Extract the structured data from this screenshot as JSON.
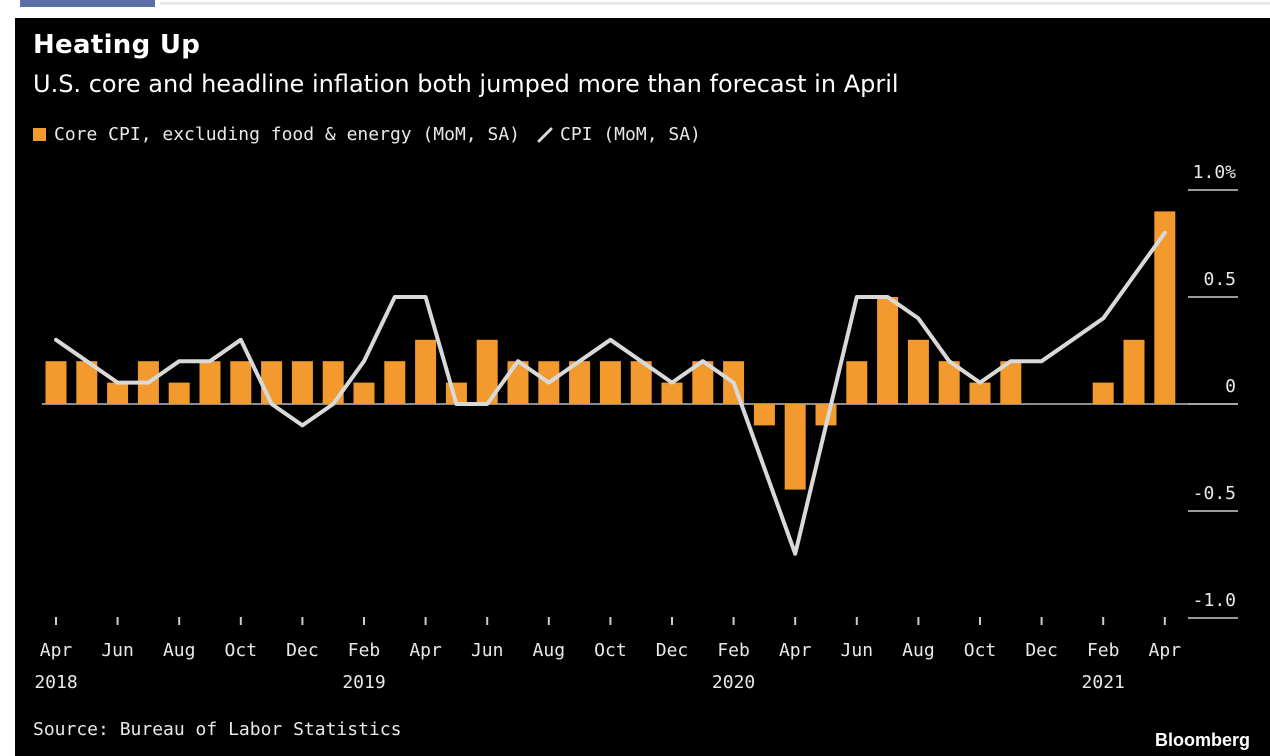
{
  "chart_data": {
    "type": "bar",
    "title": "Heating Up",
    "subtitle": "U.S. core and headline inflation both jumped more than forecast in April",
    "source": "Source: Bureau of Labor Statistics",
    "brand": "Bloomberg",
    "x": [
      "Apr 2018",
      "May 2018",
      "Jun 2018",
      "Jul 2018",
      "Aug 2018",
      "Sep 2018",
      "Oct 2018",
      "Nov 2018",
      "Dec 2018",
      "Jan 2019",
      "Feb 2019",
      "Mar 2019",
      "Apr 2019",
      "May 2019",
      "Jun 2019",
      "Jul 2019",
      "Aug 2019",
      "Sep 2019",
      "Oct 2019",
      "Nov 2019",
      "Dec 2019",
      "Jan 2020",
      "Feb 2020",
      "Mar 2020",
      "Apr 2020",
      "May 2020",
      "Jun 2020",
      "Jul 2020",
      "Aug 2020",
      "Sep 2020",
      "Oct 2020",
      "Nov 2020",
      "Dec 2020",
      "Jan 2021",
      "Feb 2021",
      "Mar 2021",
      "Apr 2021"
    ],
    "series": [
      {
        "name": "Core CPI, excluding food & energy (MoM, SA)",
        "type": "bar",
        "color": "#f29a2e",
        "values": [
          0.2,
          0.2,
          0.1,
          0.2,
          0.1,
          0.2,
          0.2,
          0.2,
          0.2,
          0.2,
          0.1,
          0.2,
          0.3,
          0.1,
          0.3,
          0.2,
          0.2,
          0.2,
          0.2,
          0.2,
          0.1,
          0.2,
          0.2,
          -0.1,
          -0.4,
          -0.1,
          0.2,
          0.5,
          0.3,
          0.2,
          0.1,
          0.2,
          0.0,
          0.0,
          0.1,
          0.3,
          0.9
        ]
      },
      {
        "name": "CPI (MoM, SA)",
        "type": "line",
        "color": "#d9d9d9",
        "values": [
          0.3,
          0.2,
          0.1,
          0.1,
          0.2,
          0.2,
          0.3,
          0.0,
          -0.1,
          0.0,
          0.2,
          0.5,
          0.5,
          0.0,
          0.0,
          0.2,
          0.1,
          0.2,
          0.3,
          0.2,
          0.1,
          0.2,
          0.1,
          -0.3,
          -0.7,
          -0.1,
          0.5,
          0.5,
          0.4,
          0.2,
          0.1,
          0.2,
          0.2,
          0.3,
          0.4,
          0.6,
          0.8
        ]
      }
    ],
    "y_ticks": [
      {
        "value": 1.0,
        "label": "1.0%"
      },
      {
        "value": 0.5,
        "label": "0.5"
      },
      {
        "value": 0,
        "label": "0"
      },
      {
        "value": -0.5,
        "label": "-0.5"
      },
      {
        "value": -1.0,
        "label": "-1.0"
      }
    ],
    "x_ticks": [
      {
        "index": 0,
        "label": "Apr",
        "year": "2018"
      },
      {
        "index": 2,
        "label": "Jun",
        "year": ""
      },
      {
        "index": 4,
        "label": "Aug",
        "year": ""
      },
      {
        "index": 6,
        "label": "Oct",
        "year": ""
      },
      {
        "index": 8,
        "label": "Dec",
        "year": ""
      },
      {
        "index": 10,
        "label": "Feb",
        "year": "2019"
      },
      {
        "index": 12,
        "label": "Apr",
        "year": ""
      },
      {
        "index": 14,
        "label": "Jun",
        "year": ""
      },
      {
        "index": 16,
        "label": "Aug",
        "year": ""
      },
      {
        "index": 18,
        "label": "Oct",
        "year": ""
      },
      {
        "index": 20,
        "label": "Dec",
        "year": ""
      },
      {
        "index": 22,
        "label": "Feb",
        "year": "2020"
      },
      {
        "index": 24,
        "label": "Apr",
        "year": ""
      },
      {
        "index": 26,
        "label": "Jun",
        "year": ""
      },
      {
        "index": 28,
        "label": "Aug",
        "year": ""
      },
      {
        "index": 30,
        "label": "Oct",
        "year": ""
      },
      {
        "index": 32,
        "label": "Dec",
        "year": ""
      },
      {
        "index": 34,
        "label": "Feb",
        "year": "2021"
      },
      {
        "index": 36,
        "label": "Apr",
        "year": ""
      }
    ],
    "ylim": [
      -1.0,
      1.0
    ],
    "legend_position": "top-left",
    "background": "#000000"
  }
}
